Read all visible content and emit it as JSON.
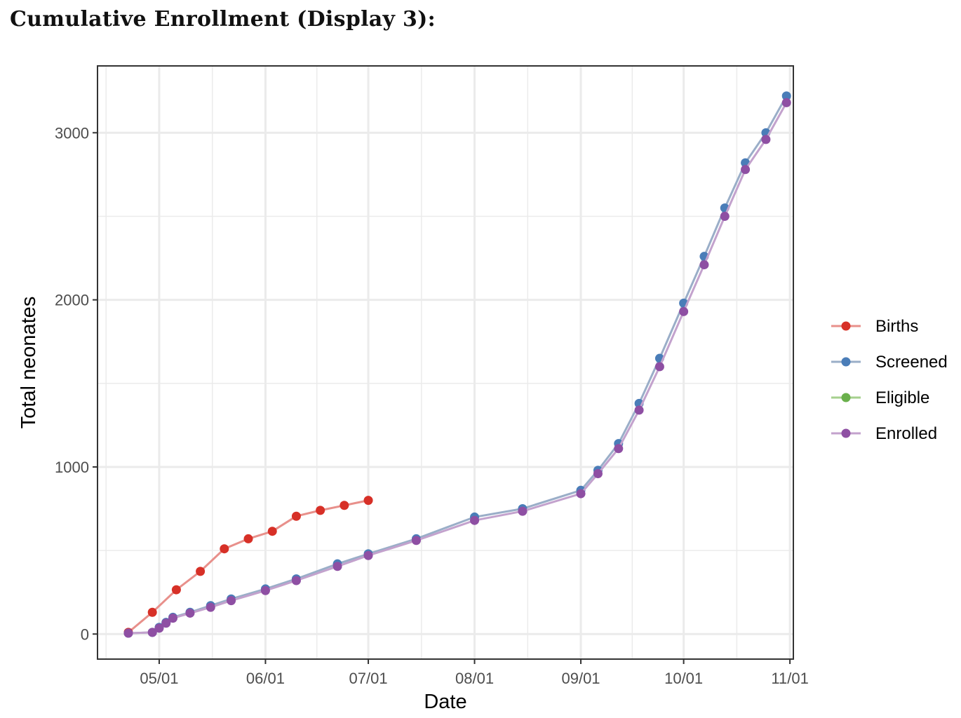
{
  "heading": "Cumulative Enrollment (Display 3):",
  "chart_data": {
    "type": "line",
    "title": "",
    "xlabel": "Date",
    "ylabel": "Total neonates",
    "x_type": "date",
    "x_tick_labels": [
      "05/01",
      "06/01",
      "07/01",
      "08/01",
      "09/01",
      "10/01",
      "11/01"
    ],
    "x_tick_dates": [
      "2023-05-01",
      "2023-06-01",
      "2023-07-01",
      "2023-08-01",
      "2023-09-01",
      "2023-10-01",
      "2023-11-01"
    ],
    "xlim": [
      "2023-04-13",
      "2023-11-02"
    ],
    "ylim": [
      -150,
      3400
    ],
    "y_ticks": [
      0,
      1000,
      2000,
      3000
    ],
    "grid": true,
    "legend_position": "right",
    "series": [
      {
        "name": "Births",
        "color": "#d73027",
        "line_color": "#e8908b",
        "x": [
          "2023-04-22",
          "2023-04-29",
          "2023-05-06",
          "2023-05-13",
          "2023-05-20",
          "2023-05-27",
          "2023-06-03",
          "2023-06-10",
          "2023-06-17",
          "2023-06-24",
          "2023-07-01"
        ],
        "y": [
          10,
          130,
          265,
          375,
          510,
          570,
          615,
          705,
          740,
          770,
          800
        ]
      },
      {
        "name": "Screened",
        "color": "#4a7db8",
        "line_color": "#9aaec8",
        "x": [
          "2023-04-22",
          "2023-04-29",
          "2023-05-01",
          "2023-05-03",
          "2023-05-05",
          "2023-05-10",
          "2023-05-16",
          "2023-05-22",
          "2023-06-01",
          "2023-06-10",
          "2023-06-22",
          "2023-07-01",
          "2023-07-15",
          "2023-08-01",
          "2023-08-15",
          "2023-09-01",
          "2023-09-06",
          "2023-09-12",
          "2023-09-18",
          "2023-09-24",
          "2023-10-01",
          "2023-10-07",
          "2023-10-13",
          "2023-10-19",
          "2023-10-25",
          "2023-10-31"
        ],
        "y": [
          5,
          10,
          40,
          70,
          100,
          130,
          170,
          210,
          270,
          330,
          420,
          480,
          570,
          700,
          750,
          860,
          980,
          1140,
          1380,
          1650,
          1980,
          2260,
          2550,
          2820,
          3000,
          3220
        ]
      },
      {
        "name": "Eligible",
        "color": "#6ab04c",
        "line_color": "#a6d08e",
        "x": [],
        "y": []
      },
      {
        "name": "Enrolled",
        "color": "#8e4fa3",
        "line_color": "#c3a2cd",
        "x": [
          "2023-04-22",
          "2023-04-29",
          "2023-05-01",
          "2023-05-03",
          "2023-05-05",
          "2023-05-10",
          "2023-05-16",
          "2023-05-22",
          "2023-06-01",
          "2023-06-10",
          "2023-06-22",
          "2023-07-01",
          "2023-07-15",
          "2023-08-01",
          "2023-08-15",
          "2023-09-01",
          "2023-09-06",
          "2023-09-12",
          "2023-09-18",
          "2023-09-24",
          "2023-10-01",
          "2023-10-07",
          "2023-10-13",
          "2023-10-19",
          "2023-10-25",
          "2023-10-31"
        ],
        "y": [
          5,
          10,
          35,
          65,
          95,
          125,
          160,
          200,
          260,
          320,
          405,
          470,
          560,
          680,
          735,
          840,
          960,
          1110,
          1340,
          1600,
          1930,
          2210,
          2500,
          2780,
          2960,
          3180
        ]
      }
    ]
  }
}
